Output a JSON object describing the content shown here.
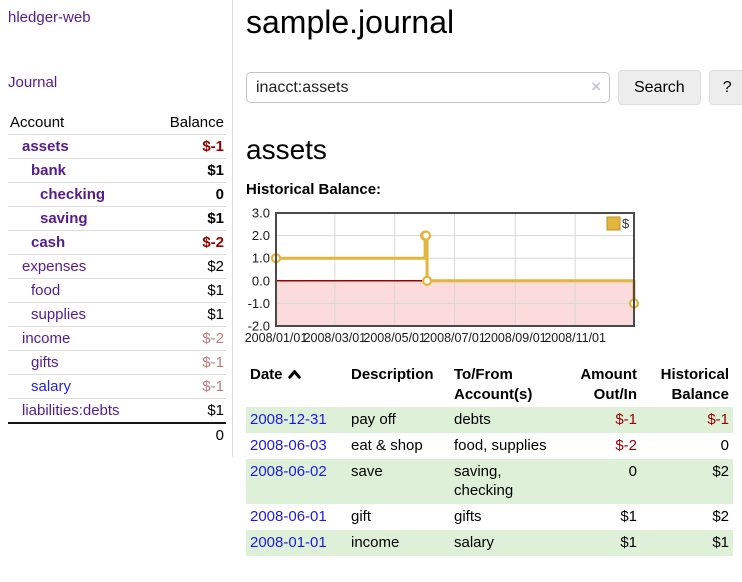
{
  "sidebar": {
    "app_title": "hledger-web",
    "nav": {
      "journal_label": "Journal"
    },
    "table": {
      "account_header": "Account",
      "balance_header": "Balance",
      "accounts": [
        {
          "name": "assets",
          "level": 1,
          "bold": true,
          "balance": "$-1",
          "balance_style": "neg"
        },
        {
          "name": "bank",
          "level": 2,
          "bold": true,
          "balance": "$1",
          "balance_style": "normal"
        },
        {
          "name": "checking",
          "level": 3,
          "bold": true,
          "balance": "0",
          "balance_style": "normal"
        },
        {
          "name": "saving",
          "level": 3,
          "bold": true,
          "balance": "$1",
          "balance_style": "normal"
        },
        {
          "name": "cash",
          "level": 2,
          "bold": true,
          "balance": "$-2",
          "balance_style": "neg"
        },
        {
          "name": "expenses",
          "level": 1,
          "bold": false,
          "balance": "$2",
          "balance_style": "normal"
        },
        {
          "name": "food",
          "level": 2,
          "bold": false,
          "balance": "$1",
          "balance_style": "normal"
        },
        {
          "name": "supplies",
          "level": 2,
          "bold": false,
          "balance": "$1",
          "balance_style": "normal"
        },
        {
          "name": "income",
          "level": 1,
          "bold": false,
          "balance": "$-2",
          "balance_style": "faded"
        },
        {
          "name": "gifts",
          "level": 2,
          "bold": false,
          "balance": "$-1",
          "balance_style": "faded"
        },
        {
          "name": "salary",
          "level": 2,
          "bold": false,
          "balance": "$-1",
          "balance_style": "faded",
          "link_color": "blue"
        },
        {
          "name": "liabilities:debts",
          "level": 1,
          "bold": false,
          "balance": "$1",
          "balance_style": "normal"
        }
      ],
      "total": "0"
    }
  },
  "header": {
    "title": "sample.journal"
  },
  "search": {
    "value": "inacct:assets",
    "clear_icon": "×",
    "button_label": "Search",
    "help_label": "?"
  },
  "account_page": {
    "title": "assets",
    "chart_label": "Historical Balance:"
  },
  "chart_data": {
    "type": "line",
    "title": "Historical Balance",
    "step": true,
    "x_range": [
      "2008-01-01",
      "2008-12-31"
    ],
    "ylim": [
      -2,
      3
    ],
    "y_ticks": [
      "3.0",
      "2.0",
      "1.0",
      "0.0",
      "-1.0",
      "-2.0"
    ],
    "x_ticks": [
      {
        "date": "2008-01-01",
        "label": "2008/01/01"
      },
      {
        "date": "2008-03-01",
        "label": "2008/03/01"
      },
      {
        "date": "2008-05-01",
        "label": "2008/05/01"
      },
      {
        "date": "2008-07-01",
        "label": "2008/07/01"
      },
      {
        "date": "2008-09-01",
        "label": "2008/09/01"
      },
      {
        "date": "2008-11-01",
        "label": "2008/11/01"
      }
    ],
    "series": [
      {
        "name": "$",
        "color": "#e3b53c",
        "points": [
          {
            "date": "2008-01-01",
            "value": 1
          },
          {
            "date": "2008-06-01",
            "value": 2
          },
          {
            "date": "2008-06-02",
            "value": 2
          },
          {
            "date": "2008-06-03",
            "value": 0
          },
          {
            "date": "2008-12-31",
            "value": -1
          }
        ]
      }
    ],
    "legend": {
      "label": "$",
      "position": "top-right"
    },
    "grid": true,
    "zero_line_color": "#a00000",
    "negative_region_color": "#fbdbdb"
  },
  "register": {
    "columns": {
      "date": "Date",
      "sort_icon": "chevron-up",
      "description": "Description",
      "accounts": "To/From Account(s)",
      "amount": "Amount Out/In",
      "balance": "Historical Balance"
    },
    "rows": [
      {
        "date": "2008-12-31",
        "description": "pay off",
        "accounts": "debts",
        "amount": "$-1",
        "balance": "$-1"
      },
      {
        "date": "2008-06-03",
        "description": "eat & shop",
        "accounts": "food, supplies",
        "amount": "$-2",
        "balance": "0"
      },
      {
        "date": "2008-06-02",
        "description": "save",
        "accounts": "saving, checking",
        "amount": "0",
        "balance": "$2"
      },
      {
        "date": "2008-06-01",
        "description": "gift",
        "accounts": "gifts",
        "amount": "$1",
        "balance": "$2"
      },
      {
        "date": "2008-01-01",
        "description": "income",
        "accounts": "salary",
        "amount": "$1",
        "balance": "$1"
      }
    ]
  },
  "colors": {
    "link_purple": "#551c8d",
    "link_blue": "#1b1be0",
    "negative_red": "#990000",
    "faded_negative": "#c07c7c",
    "row_stripe_green": "#dff0d8",
    "chart_line_gold": "#e3b53c",
    "chart_negative_pink": "#fbdbdb",
    "chart_zero_line": "#a00000"
  }
}
